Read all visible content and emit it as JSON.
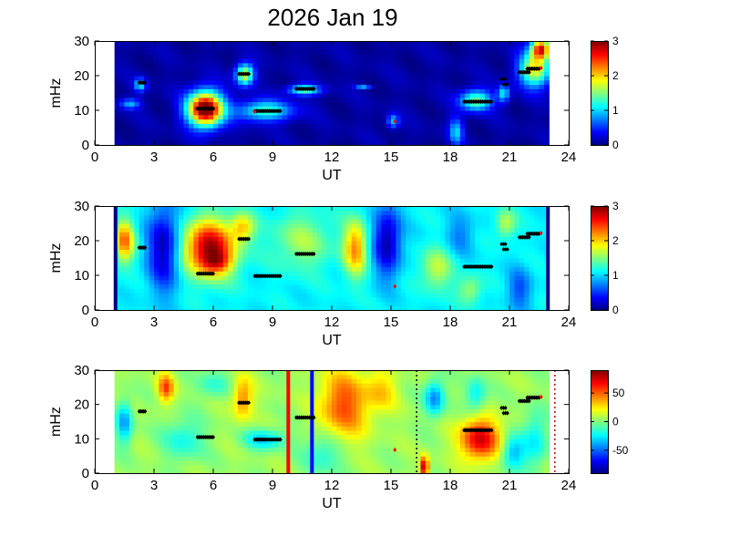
{
  "figure": {
    "title": "2026 Jan 19"
  },
  "chart_data": [
    {
      "type": "heatmap",
      "panel": "top",
      "xlabel": "UT",
      "ylabel": "mHz",
      "xlim": [
        0,
        24
      ],
      "ylim": [
        0,
        30
      ],
      "xticks": [
        "0",
        "3",
        "6",
        "9",
        "12",
        "15",
        "18",
        "21",
        "24"
      ],
      "yticks": [
        "0",
        "10",
        "20",
        "30"
      ],
      "colorbar": {
        "min": 0,
        "max": 3,
        "ticks": [
          "0",
          "1",
          "2",
          "3"
        ]
      },
      "data_span": [
        1,
        23
      ],
      "background_value": 0.1,
      "blobs": [
        {
          "x": 5.6,
          "y": 10.5,
          "rx": 0.9,
          "ry": 5,
          "v": 3.2
        },
        {
          "x": 7.6,
          "y": 20.5,
          "rx": 0.45,
          "ry": 3,
          "v": 1.8
        },
        {
          "x": 8.6,
          "y": 10,
          "rx": 1.4,
          "ry": 3,
          "v": 1.2
        },
        {
          "x": 10.6,
          "y": 16,
          "rx": 0.8,
          "ry": 1.5,
          "v": 1.3
        },
        {
          "x": 2.3,
          "y": 17.5,
          "rx": 0.3,
          "ry": 2,
          "v": 1.0
        },
        {
          "x": 1.8,
          "y": 12,
          "rx": 0.5,
          "ry": 1.5,
          "v": 0.8
        },
        {
          "x": 13.6,
          "y": 17,
          "rx": 0.4,
          "ry": 0.6,
          "v": 0.8
        },
        {
          "x": 15.1,
          "y": 7,
          "rx": 0.3,
          "ry": 2,
          "v": 0.9
        },
        {
          "x": 19.3,
          "y": 13,
          "rx": 0.8,
          "ry": 3,
          "v": 1.4
        },
        {
          "x": 18.3,
          "y": 4,
          "rx": 0.35,
          "ry": 4,
          "v": 0.9
        },
        {
          "x": 20.7,
          "y": 15,
          "rx": 0.3,
          "ry": 2.5,
          "v": 1.0
        },
        {
          "x": 22.3,
          "y": 22,
          "rx": 0.8,
          "ry": 5,
          "v": 1.8
        },
        {
          "x": 22.6,
          "y": 28,
          "rx": 0.5,
          "ry": 3,
          "v": 2.4
        }
      ],
      "markers": [
        {
          "t0": 2.25,
          "t1": 2.55,
          "f": 18
        },
        {
          "t0": 5.2,
          "t1": 6.0,
          "f": 10.5
        },
        {
          "t0": 7.3,
          "t1": 7.8,
          "f": 20.5
        },
        {
          "t0": 8.1,
          "t1": 9.4,
          "f": 9.8
        },
        {
          "t0": 10.2,
          "t1": 11.1,
          "f": 16.2
        },
        {
          "t0": 18.7,
          "t1": 20.1,
          "f": 12.5
        },
        {
          "t0": 20.6,
          "t1": 20.8,
          "f": 19
        },
        {
          "t0": 20.7,
          "t1": 20.9,
          "f": 17.5
        },
        {
          "t0": 21.5,
          "t1": 22.0,
          "f": 21
        },
        {
          "t0": 21.9,
          "t1": 22.5,
          "f": 22
        }
      ],
      "red_markers": [
        {
          "t": 15.2,
          "f": 6.8
        },
        {
          "t": 22.6,
          "f": 22.2
        },
        {
          "t": 8.1,
          "f": 9.6
        }
      ]
    },
    {
      "type": "heatmap",
      "panel": "middle",
      "xlabel": "UT",
      "ylabel": "mHz",
      "xlim": [
        0,
        24
      ],
      "ylim": [
        0,
        30
      ],
      "xticks": [
        "0",
        "3",
        "6",
        "9",
        "12",
        "15",
        "18",
        "21",
        "24"
      ],
      "yticks": [
        "0",
        "10",
        "20",
        "30"
      ],
      "colorbar": {
        "min": 0,
        "max": 3,
        "ticks": [
          "0",
          "1",
          "2",
          "3"
        ]
      },
      "data_span": [
        1,
        23
      ],
      "background_value": 1.1,
      "blobs": [
        {
          "x": 3.5,
          "y": 18,
          "rx": 0.8,
          "ry": 12,
          "v": -1.0
        },
        {
          "x": 14.8,
          "y": 20,
          "rx": 0.7,
          "ry": 10,
          "v": -1.0
        },
        {
          "x": 5.8,
          "y": 18,
          "rx": 1.3,
          "ry": 8,
          "v": 1.8
        },
        {
          "x": 6.2,
          "y": 14,
          "rx": 0.7,
          "ry": 3,
          "v": 0.6
        },
        {
          "x": 1.5,
          "y": 20,
          "rx": 0.5,
          "ry": 6,
          "v": 1.2
        },
        {
          "x": 7.5,
          "y": 24,
          "rx": 0.6,
          "ry": 4,
          "v": 0.8
        },
        {
          "x": 13.2,
          "y": 18,
          "rx": 0.6,
          "ry": 8,
          "v": 1.1
        },
        {
          "x": 10.5,
          "y": 20,
          "rx": 1.5,
          "ry": 8,
          "v": 0.5
        },
        {
          "x": 17.3,
          "y": 12,
          "rx": 0.8,
          "ry": 6,
          "v": 0.6
        },
        {
          "x": 19.0,
          "y": 6,
          "rx": 0.6,
          "ry": 4,
          "v": 0.5
        },
        {
          "x": 21.5,
          "y": 6,
          "rx": 0.6,
          "ry": 6,
          "v": -0.5
        },
        {
          "x": 20.8,
          "y": 25,
          "rx": 0.5,
          "ry": 4,
          "v": 0.6
        },
        {
          "x": 18.5,
          "y": 22,
          "rx": 0.7,
          "ry": 6,
          "v": -0.35
        }
      ],
      "edge_bars": [
        1.05,
        22.95
      ],
      "markers": [
        {
          "t0": 2.25,
          "t1": 2.55,
          "f": 18
        },
        {
          "t0": 5.2,
          "t1": 6.0,
          "f": 10.5
        },
        {
          "t0": 7.3,
          "t1": 7.8,
          "f": 20.5
        },
        {
          "t0": 8.1,
          "t1": 9.4,
          "f": 9.8
        },
        {
          "t0": 10.2,
          "t1": 11.1,
          "f": 16.2
        },
        {
          "t0": 18.7,
          "t1": 20.1,
          "f": 12.5
        },
        {
          "t0": 20.6,
          "t1": 20.8,
          "f": 19
        },
        {
          "t0": 20.7,
          "t1": 20.9,
          "f": 17.5
        },
        {
          "t0": 21.5,
          "t1": 22.0,
          "f": 21
        },
        {
          "t0": 21.9,
          "t1": 22.5,
          "f": 22
        }
      ],
      "red_markers": [
        {
          "t": 15.2,
          "f": 6.8
        },
        {
          "t": 22.6,
          "f": 22.2
        }
      ]
    },
    {
      "type": "heatmap",
      "panel": "bottom",
      "xlabel": "UT",
      "ylabel": "mHz",
      "xlim": [
        0,
        24
      ],
      "ylim": [
        0,
        30
      ],
      "xticks": [
        "0",
        "3",
        "6",
        "9",
        "12",
        "15",
        "18",
        "21",
        "24"
      ],
      "yticks": [
        "0",
        "10",
        "20",
        "30"
      ],
      "colorbar": {
        "min": -90,
        "max": 90,
        "ticks": [
          "50",
          "0",
          "-50"
        ],
        "tick_values": [
          50,
          0,
          -50
        ]
      },
      "data_span": [
        1,
        23
      ],
      "background_value": 5,
      "blobs": [
        {
          "x": 1.5,
          "y": 15,
          "rx": 0.4,
          "ry": 6,
          "v": -45
        },
        {
          "x": 3.6,
          "y": 25,
          "rx": 0.4,
          "ry": 4,
          "v": 50
        },
        {
          "x": 4.5,
          "y": 10,
          "rx": 1.0,
          "ry": 6,
          "v": -25
        },
        {
          "x": 7.5,
          "y": 22,
          "rx": 0.5,
          "ry": 6,
          "v": 40
        },
        {
          "x": 8.6,
          "y": 10,
          "rx": 1.0,
          "ry": 3,
          "v": -35
        },
        {
          "x": 12.6,
          "y": 20,
          "rx": 1.2,
          "ry": 10,
          "v": 50
        },
        {
          "x": 11.6,
          "y": 6,
          "rx": 1.0,
          "ry": 6,
          "v": -25
        },
        {
          "x": 14.5,
          "y": 24,
          "rx": 0.8,
          "ry": 6,
          "v": 25
        },
        {
          "x": 16.7,
          "y": 2,
          "rx": 0.2,
          "ry": 3,
          "v": 80
        },
        {
          "x": 17.2,
          "y": 22,
          "rx": 0.5,
          "ry": 5,
          "v": -50
        },
        {
          "x": 19.5,
          "y": 10,
          "rx": 1.0,
          "ry": 6,
          "v": 70
        },
        {
          "x": 21.2,
          "y": 6,
          "rx": 0.6,
          "ry": 5,
          "v": -40
        },
        {
          "x": 19.3,
          "y": 23,
          "rx": 0.5,
          "ry": 5,
          "v": -30
        },
        {
          "x": 22.3,
          "y": 10,
          "rx": 0.6,
          "ry": 8,
          "v": -30
        },
        {
          "x": 6.0,
          "y": 26,
          "rx": 0.8,
          "ry": 4,
          "v": -20
        }
      ],
      "vlines": [
        {
          "t": 9.8,
          "color": "#ff0000",
          "style": "solid"
        },
        {
          "t": 11.0,
          "color": "#0000ff",
          "style": "solid"
        },
        {
          "t": 16.3,
          "color": "#000000",
          "style": "dotted"
        },
        {
          "t": 23.3,
          "color": "#cc0000",
          "style": "dotted"
        }
      ],
      "markers": [
        {
          "t0": 2.25,
          "t1": 2.55,
          "f": 18
        },
        {
          "t0": 5.2,
          "t1": 6.0,
          "f": 10.5
        },
        {
          "t0": 7.3,
          "t1": 7.8,
          "f": 20.5
        },
        {
          "t0": 8.1,
          "t1": 9.4,
          "f": 9.8
        },
        {
          "t0": 10.2,
          "t1": 11.1,
          "f": 16.2
        },
        {
          "t0": 18.7,
          "t1": 20.1,
          "f": 12.5
        },
        {
          "t0": 20.6,
          "t1": 20.8,
          "f": 19
        },
        {
          "t0": 20.7,
          "t1": 20.9,
          "f": 17.5
        },
        {
          "t0": 21.5,
          "t1": 22.0,
          "f": 21
        },
        {
          "t0": 21.9,
          "t1": 22.5,
          "f": 22
        }
      ],
      "red_markers": [
        {
          "t": 15.2,
          "f": 6.8
        },
        {
          "t": 22.6,
          "f": 22.2
        }
      ]
    }
  ]
}
